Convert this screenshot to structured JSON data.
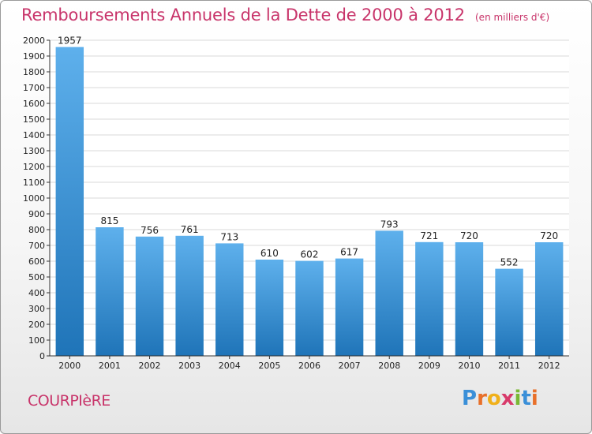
{
  "chart_data": {
    "type": "bar",
    "title": "Remboursements Annuels de la Dette de 2000 à 2012",
    "subtitle": "(en milliers d'€)",
    "categories": [
      "2000",
      "2001",
      "2002",
      "2003",
      "2004",
      "2005",
      "2006",
      "2007",
      "2008",
      "2009",
      "2010",
      "2011",
      "2012"
    ],
    "values": [
      1957,
      815,
      756,
      761,
      713,
      610,
      602,
      617,
      793,
      721,
      720,
      552,
      720
    ],
    "ylim": [
      0,
      2000
    ],
    "ytick_step": 100,
    "grid": true,
    "xlabel": "",
    "ylabel": ""
  },
  "commune": "COURPIèRE",
  "brand": {
    "letters": [
      "P",
      "r",
      "o",
      "x",
      "i",
      "t",
      "i"
    ],
    "colors": [
      "#3a8fd8",
      "#e8702a",
      "#f0b01a",
      "#d83a6a",
      "#7ab834",
      "#3a8fd8",
      "#e8702a"
    ]
  },
  "colors": {
    "bar_top": "#5eb0ec",
    "bar_bottom": "#1f74b8",
    "accent": "#c8346a"
  }
}
